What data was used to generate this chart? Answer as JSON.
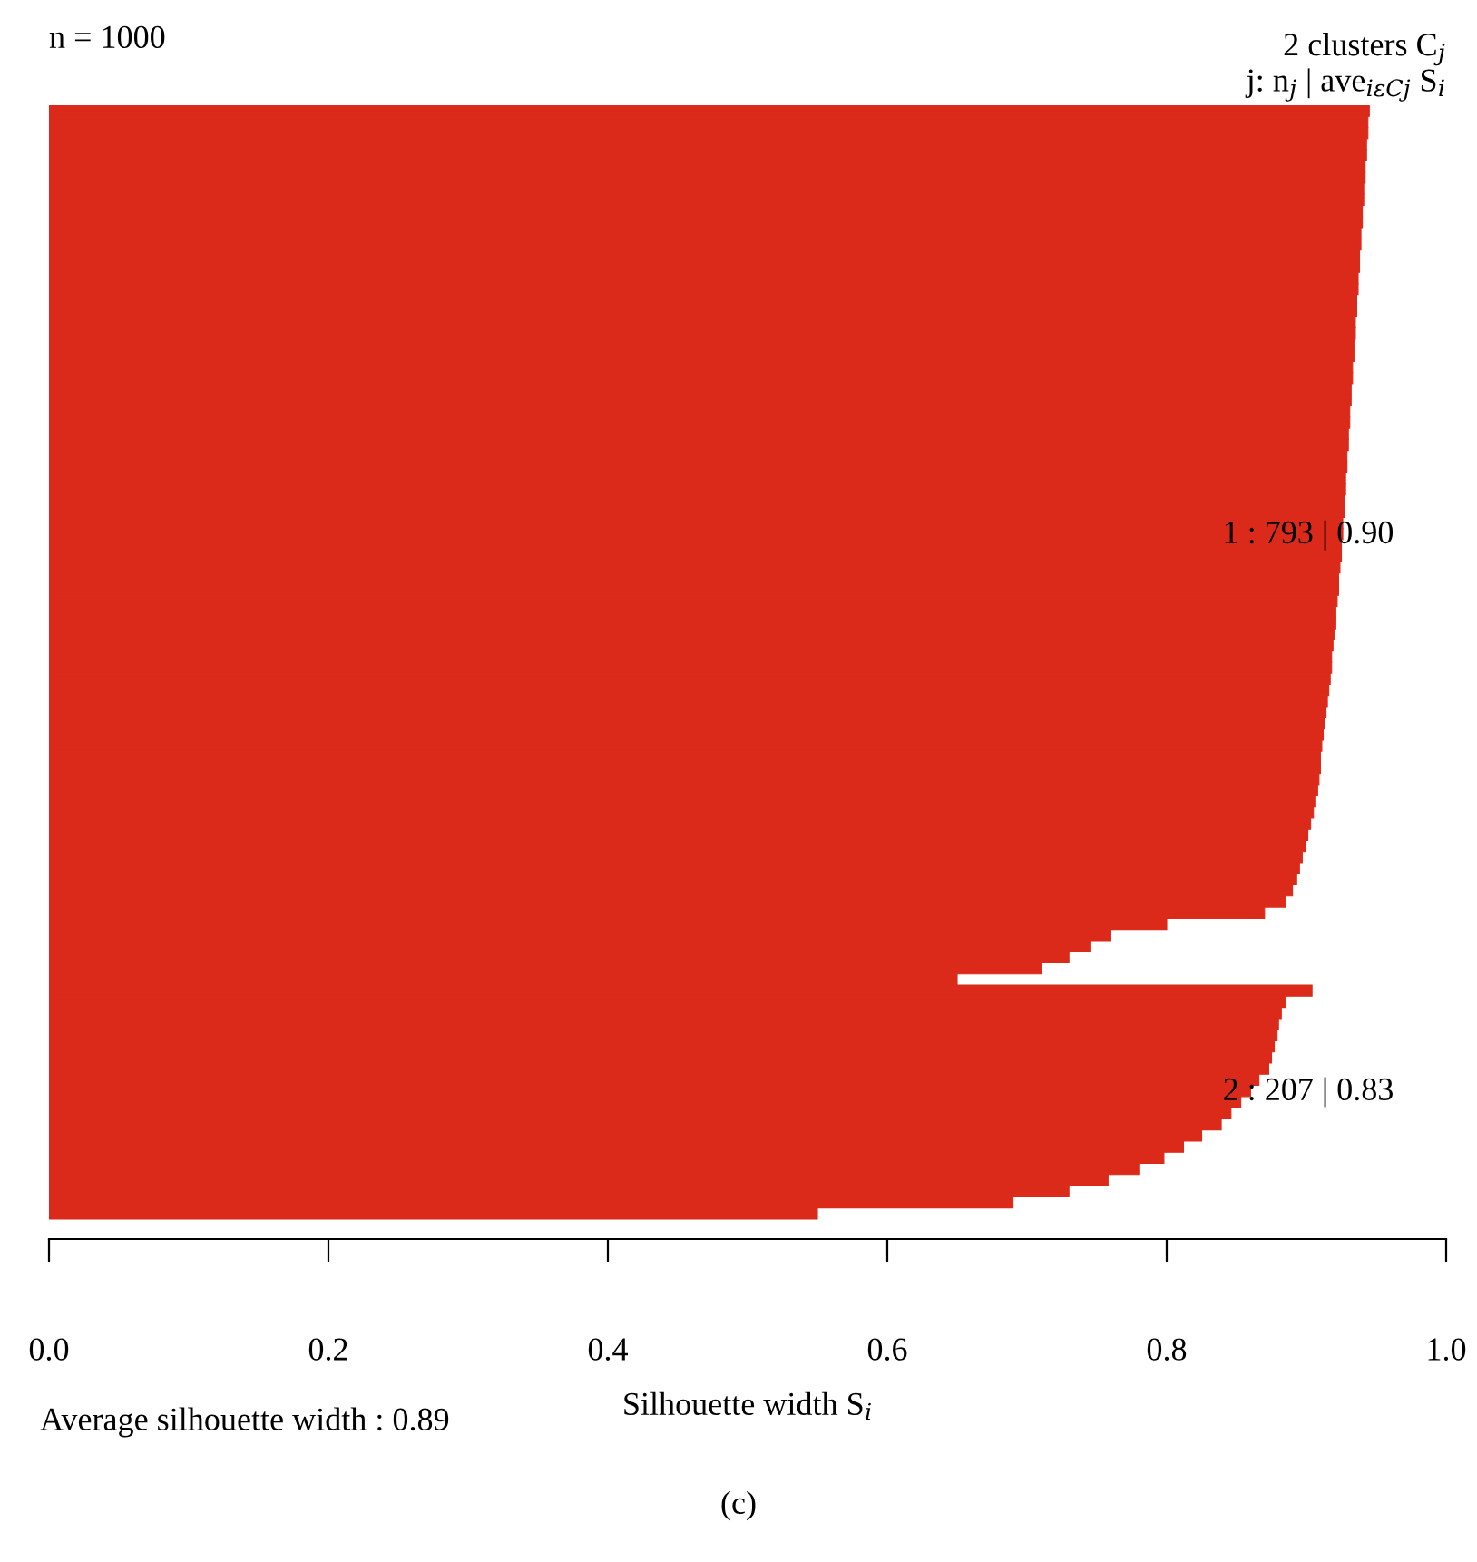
{
  "chart_data": {
    "type": "bar",
    "orientation": "horizontal",
    "title": "n = 1000",
    "subtitle": "2 clusters C$_{j}$\nj: n$_{j}$ | ave$_{iεCj}$ S$_{i}$",
    "xlabel": "Silhouette width S$_{i}$",
    "categories": [
      null,
      null,
      null,
      null,
      null,
      null,
      null,
      null,
      null,
      null,
      null,
      null,
      null,
      null,
      null,
      null,
      null,
      null,
      null,
      null,
      null,
      null,
      null,
      null,
      null,
      null,
      null,
      null,
      null,
      null,
      null,
      null,
      null,
      null,
      null,
      null,
      null,
      null,
      null,
      null,
      null,
      null,
      null,
      null,
      null,
      null,
      null,
      null,
      null,
      null,
      null,
      null,
      null,
      null,
      null,
      null,
      null,
      null,
      null,
      null,
      null,
      null,
      null,
      null,
      null,
      null,
      null,
      null,
      null,
      null,
      null,
      null,
      null,
      null,
      null,
      null,
      null,
      null,
      null,
      null,
      null,
      null,
      null,
      null,
      null,
      null,
      null,
      null,
      null,
      null,
      null,
      null,
      null,
      null,
      null,
      null,
      null,
      null,
      null,
      null
    ],
    "values": [
      0.945,
      0.944,
      0.944,
      0.943,
      0.943,
      0.942,
      0.942,
      0.941,
      0.941,
      0.94,
      0.94,
      0.939,
      0.939,
      0.938,
      0.938,
      0.937,
      0.937,
      0.936,
      0.936,
      0.935,
      0.935,
      0.934,
      0.934,
      0.933,
      0.933,
      0.932,
      0.932,
      0.931,
      0.931,
      0.93,
      0.93,
      0.929,
      0.929,
      0.928,
      0.928,
      0.927,
      0.927,
      0.926,
      0.926,
      0.925,
      0.925,
      0.924,
      0.923,
      0.923,
      0.922,
      0.921,
      0.921,
      0.92,
      0.919,
      0.918,
      0.918,
      0.917,
      0.916,
      0.915,
      0.914,
      0.913,
      0.912,
      0.911,
      0.91,
      0.91,
      0.909,
      0.908,
      0.906,
      0.905,
      0.903,
      0.901,
      0.899,
      0.897,
      0.895,
      0.893,
      0.89,
      0.885,
      0.87,
      0.8,
      0.76,
      0.745,
      0.73,
      0.71,
      0.65,
      0.904,
      0.885,
      0.882,
      0.88,
      0.879,
      0.877,
      0.875,
      0.873,
      0.866,
      0.86,
      0.853,
      0.846,
      0.839,
      0.825,
      0.812,
      0.798,
      0.78,
      0.758,
      0.73,
      0.69,
      0.55
    ],
    "color": "#dc2a1a",
    "xlim": [
      0.0,
      1.0
    ],
    "xticks": [
      {
        "value": 0.0,
        "label": "0.0"
      },
      0.2,
      0.4,
      0.6,
      0.8,
      {
        "value": 1.0,
        "label": "1.0"
      }
    ],
    "annotations": [
      "1 : 793 | 0.90",
      "2 : 207 | 0.83",
      "Average silhouette width : 0.89",
      "(c)"
    ],
    "grid": false
  }
}
